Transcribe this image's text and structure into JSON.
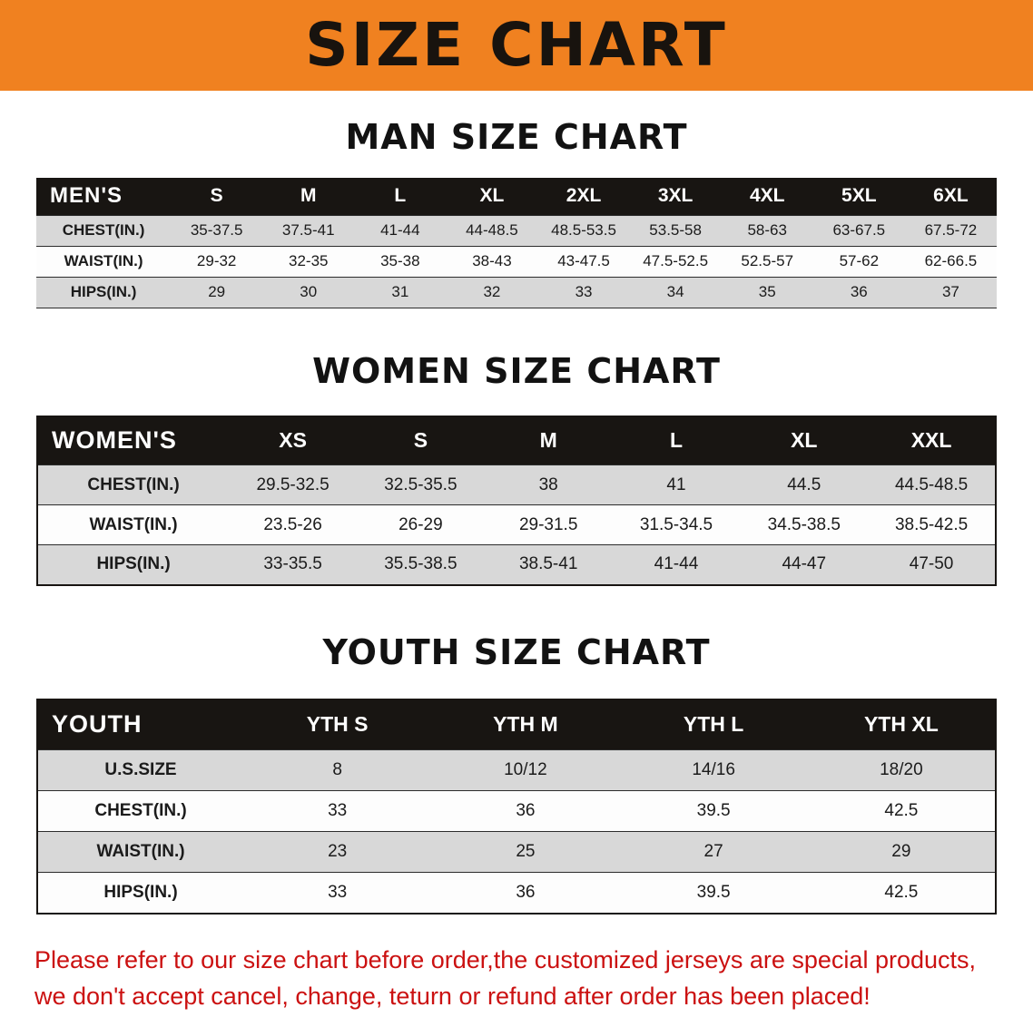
{
  "banner": {
    "title": "SIZE CHART",
    "bg_color": "#f08120",
    "text_color": "#18130e"
  },
  "sections": [
    {
      "id": "men",
      "heading": "MAN SIZE CHART",
      "table": {
        "header": [
          "MEN'S",
          "S",
          "M",
          "L",
          "XL",
          "2XL",
          "3XL",
          "4XL",
          "5XL",
          "6XL"
        ],
        "rows": [
          [
            "CHEST(IN.)",
            "35-37.5",
            "37.5-41",
            "41-44",
            "44-48.5",
            "48.5-53.5",
            "53.5-58",
            "58-63",
            "63-67.5",
            "67.5-72"
          ],
          [
            "WAIST(IN.)",
            "29-32",
            "32-35",
            "35-38",
            "38-43",
            "43-47.5",
            "47.5-52.5",
            "52.5-57",
            "57-62",
            "62-66.5"
          ],
          [
            "HIPS(IN.)",
            "29",
            "30",
            "31",
            "32",
            "33",
            "34",
            "35",
            "36",
            "37"
          ]
        ]
      }
    },
    {
      "id": "women",
      "heading": "WOMEN SIZE CHART",
      "table": {
        "header": [
          "WOMEN'S",
          "XS",
          "S",
          "M",
          "L",
          "XL",
          "XXL"
        ],
        "rows": [
          [
            "CHEST(IN.)",
            "29.5-32.5",
            "32.5-35.5",
            "38",
            "41",
            "44.5",
            "44.5-48.5"
          ],
          [
            "WAIST(IN.)",
            "23.5-26",
            "26-29",
            "29-31.5",
            "31.5-34.5",
            "34.5-38.5",
            "38.5-42.5"
          ],
          [
            "HIPS(IN.)",
            "33-35.5",
            "35.5-38.5",
            "38.5-41",
            "41-44",
            "44-47",
            "47-50"
          ]
        ]
      }
    },
    {
      "id": "youth",
      "heading": "YOUTH SIZE CHART",
      "table": {
        "header": [
          "YOUTH",
          "YTH S",
          "YTH M",
          "YTH L",
          "YTH XL"
        ],
        "rows": [
          [
            "U.S.SIZE",
            "8",
            "10/12",
            "14/16",
            "18/20"
          ],
          [
            "CHEST(IN.)",
            "33",
            "36",
            "39.5",
            "42.5"
          ],
          [
            "WAIST(IN.)",
            "23",
            "25",
            "27",
            "29"
          ],
          [
            "HIPS(IN.)",
            "33",
            "36",
            "39.5",
            "42.5"
          ]
        ]
      }
    }
  ],
  "disclaimer": {
    "line1": "Please refer to our size chart before order,the customized jerseys are special products,",
    "line2": "we don't accept cancel, change, teturn or refund after order has been placed!",
    "color": "#cb1111"
  }
}
